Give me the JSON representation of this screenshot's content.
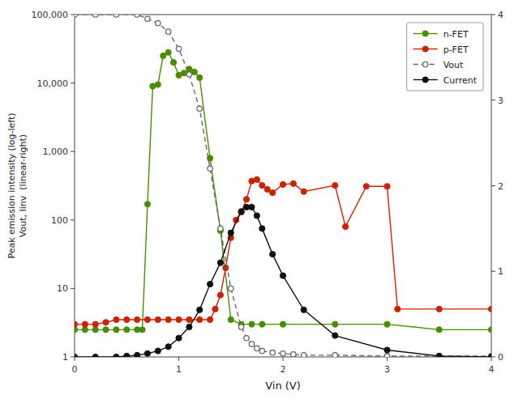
{
  "chart_data": {
    "type": "line",
    "xlabel": "Vin (V)",
    "ylabel": "Peak emission intensity (log-left)\nVout, Iinv  (linear-right)",
    "log": "y",
    "xlim": [
      0,
      4
    ],
    "xticks": [
      0,
      1,
      2,
      3,
      4
    ],
    "ylim": [
      1,
      100000
    ],
    "yticks": [
      1,
      10,
      100,
      {
        "value": 1000,
        "label": "1,000"
      },
      {
        "value": 10000,
        "label": "10,000"
      },
      {
        "value": 100000,
        "label": "100,000"
      }
    ],
    "y2lim": [
      0,
      4
    ],
    "y2ticks": [
      0,
      1,
      2,
      3,
      4
    ],
    "grid": false,
    "legend": "upper right",
    "series": [
      {
        "name": "n-FET",
        "color": "#4a8c00",
        "marker": "circle",
        "line_style": "solid",
        "x": [
          0.0,
          0.1,
          0.2,
          0.3,
          0.4,
          0.5,
          0.6,
          0.65,
          0.7,
          0.75,
          0.8,
          0.85,
          0.9,
          0.95,
          1.0,
          1.05,
          1.1,
          1.15,
          1.2,
          1.3,
          1.4,
          1.5,
          1.6,
          1.7,
          1.8,
          2.0,
          2.5,
          3.0,
          3.5,
          4.0
        ],
        "values": [
          2.5,
          2.5,
          2.5,
          2.5,
          2.5,
          2.5,
          2.5,
          2.5,
          170,
          9000,
          9500,
          25000,
          28000,
          20000,
          13000,
          14000,
          16000,
          14500,
          12000,
          800,
          70,
          3.5,
          3.0,
          3.0,
          3.0,
          3.0,
          3.0,
          3.0,
          2.5,
          2.5
        ]
      },
      {
        "name": "p-FET",
        "color": "#cc2200",
        "marker": "circle",
        "line_style": "solid",
        "x": [
          0.0,
          0.1,
          0.2,
          0.3,
          0.4,
          0.5,
          0.6,
          0.7,
          0.8,
          0.9,
          1.0,
          1.1,
          1.2,
          1.3,
          1.35,
          1.4,
          1.45,
          1.5,
          1.55,
          1.6,
          1.65,
          1.7,
          1.75,
          1.8,
          1.85,
          1.9,
          2.0,
          2.1,
          2.2,
          2.5,
          2.6,
          2.8,
          3.0,
          3.1,
          3.5,
          4.0
        ],
        "values": [
          3.0,
          3.0,
          3.0,
          3.2,
          3.5,
          3.5,
          3.5,
          3.5,
          3.5,
          3.5,
          3.5,
          3.5,
          3.5,
          3.5,
          5.0,
          8.0,
          20,
          55,
          100,
          130,
          200,
          370,
          390,
          320,
          280,
          250,
          330,
          340,
          260,
          320,
          80,
          310,
          310,
          5.0,
          5.0,
          5.0
        ]
      },
      {
        "name": "Vout",
        "color": "#666666",
        "marker": "open-circle",
        "line_style": "dashed",
        "axis": "y2",
        "x": [
          0.0,
          0.2,
          0.4,
          0.6,
          0.7,
          0.8,
          0.9,
          1.0,
          1.1,
          1.2,
          1.3,
          1.4,
          1.5,
          1.6,
          1.65,
          1.7,
          1.75,
          1.8,
          1.9,
          2.0,
          2.1,
          2.2,
          2.5,
          3.0,
          3.5,
          4.0
        ],
        "values": [
          4.0,
          4.0,
          4.0,
          4.0,
          3.95,
          3.9,
          3.8,
          3.6,
          3.3,
          2.9,
          2.2,
          1.5,
          0.8,
          0.35,
          0.22,
          0.15,
          0.1,
          0.07,
          0.05,
          0.04,
          0.03,
          0.02,
          0.02,
          0.01,
          0.01,
          0.01
        ]
      },
      {
        "name": "Current",
        "color": "#111111",
        "marker": "circle",
        "line_style": "solid",
        "axis": "y2",
        "x": [
          0.0,
          0.2,
          0.4,
          0.5,
          0.6,
          0.7,
          0.8,
          0.9,
          1.0,
          1.1,
          1.2,
          1.3,
          1.4,
          1.5,
          1.6,
          1.65,
          1.7,
          1.75,
          1.8,
          1.9,
          2.0,
          2.2,
          2.5,
          3.0,
          3.5,
          4.0
        ],
        "values": [
          0.0,
          0.0,
          0.0,
          0.01,
          0.02,
          0.04,
          0.07,
          0.12,
          0.22,
          0.35,
          0.55,
          0.85,
          1.1,
          1.45,
          1.7,
          1.75,
          1.75,
          1.65,
          1.5,
          1.2,
          0.95,
          0.55,
          0.25,
          0.08,
          0.01,
          0.0
        ]
      }
    ]
  }
}
